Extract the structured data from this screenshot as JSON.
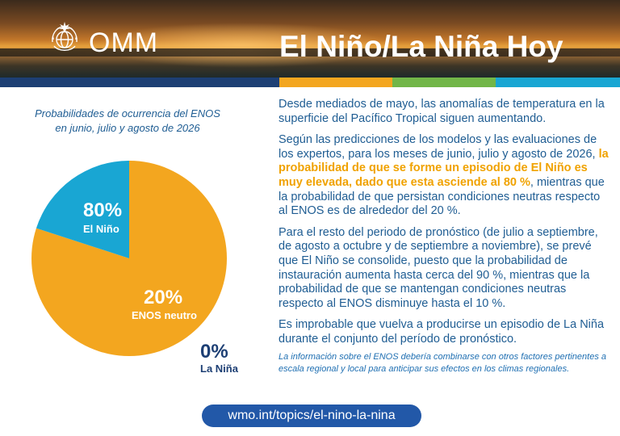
{
  "header": {
    "logo_text": "OMM",
    "title": "El Niño/La Niña Hoy"
  },
  "colors": {
    "navy": "#1d3f74",
    "orange": "#f3a61f",
    "green": "#72b648",
    "cyan": "#19a6d3",
    "text_blue": "#1f5d93",
    "highlight": "#f0a200",
    "button_blue": "#2258a8"
  },
  "chart_data": {
    "type": "pie",
    "title": "Probabilidades de ocurrencia del ENOS en junio, julio y agosto de 2026",
    "slices": [
      {
        "label": "El Niño",
        "value": 80,
        "value_label": "80%",
        "color": "#f3a61f"
      },
      {
        "label": "ENOS neutro",
        "value": 20,
        "value_label": "20%",
        "color": "#19a6d3"
      },
      {
        "label": "La Niña",
        "value": 0,
        "value_label": "0%",
        "color": "#1d3f74"
      }
    ]
  },
  "body": {
    "p1": "Desde mediados de mayo, las anomalías de temperatura en la superficie del Pacífico Tropical siguen aumentando.",
    "p2_start": "Según las predicciones de los modelos y las evaluaciones de los expertos, para los meses de junio, julio y agosto de 2026, ",
    "p2_highlight": "la probabilidad de que se forme un episodio de El Niño es muy elevada, dado que esta asciende al 80 %",
    "p2_end": ", mientras que la probabilidad de que persistan condiciones neutras respecto al ENOS es de alrededor del 20 %.",
    "p3": "Para el resto del periodo de pronóstico (de julio a septiembre, de agosto a octubre y de septiembre a noviembre), se prevé que El Niño se consolide, puesto que la probabilidad de instauración aumenta hasta cerca del 90 %, mientras que la probabilidad de que se mantengan condiciones neutras respecto al ENOS disminuye hasta el 10 %.",
    "p4": "Es improbable que vuelva a producirse un episodio de La Niña durante el conjunto del período de pronóstico.",
    "note": "La información sobre el ENOS debería combinarse con otros factores pertinentes a escala regional y local para anticipar sus efectos en los climas regionales."
  },
  "footer": {
    "url": "wmo.int/topics/el-nino-la-nina"
  }
}
